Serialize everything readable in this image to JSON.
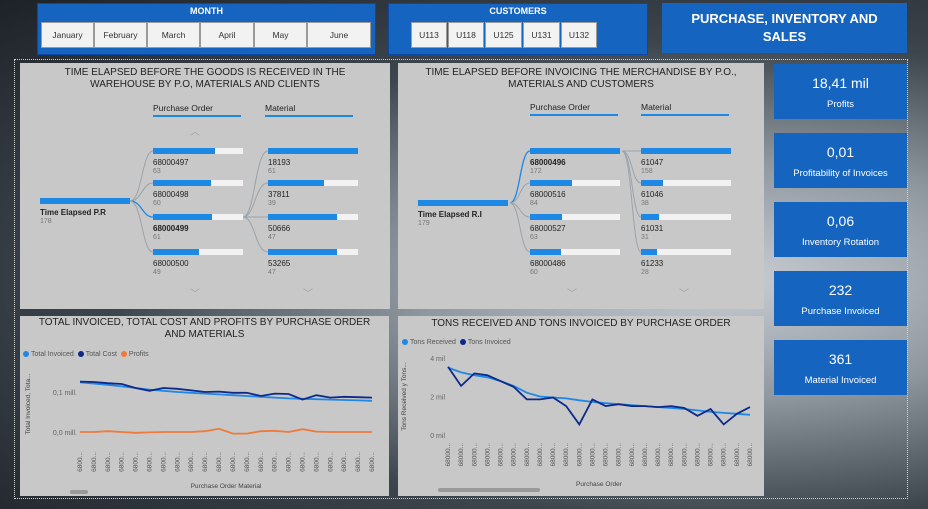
{
  "month_filter": {
    "title": "MONTH",
    "options": [
      "January",
      "February",
      "March",
      "April",
      "May",
      "June"
    ]
  },
  "customer_filter": {
    "title": "CUSTOMERS",
    "options": [
      "U113",
      "U118",
      "U125",
      "U131",
      "U132"
    ]
  },
  "report_title": "PURCHASE, INVENTORY AND SALES",
  "kpis": [
    {
      "value": "18,41 mil",
      "label": "Profits"
    },
    {
      "value": "0,01",
      "label": "Profitability of Invoices"
    },
    {
      "value": "0,06",
      "label": "Inventory Rotation"
    },
    {
      "value": "232",
      "label": "Purchase Invoiced"
    },
    {
      "value": "361",
      "label": "Material Invoiced"
    }
  ],
  "tree1": {
    "title_line1": "TIME ELAPSED BEFORE THE GOODS IS RECEIVED IN THE",
    "title_line2": "WAREHOUSE BY P.O, MATERIALS AND CLIENTS",
    "col1": "Purchase Order",
    "col2": "Material",
    "root": {
      "label": "Time Elapsed P.R",
      "value": "178",
      "fill": 1.0
    },
    "level1": [
      {
        "label": "68000497",
        "value": "63",
        "fill": 0.69,
        "selected": false
      },
      {
        "label": "68000498",
        "value": "60",
        "fill": 0.64,
        "selected": false
      },
      {
        "label": "68000499",
        "value": "61",
        "fill": 0.66,
        "selected": true
      },
      {
        "label": "68000500",
        "value": "49",
        "fill": 0.51,
        "selected": false
      }
    ],
    "level2": [
      {
        "label": "18193",
        "value": "61",
        "fill": 1.0
      },
      {
        "label": "37811",
        "value": "39",
        "fill": 0.62
      },
      {
        "label": "50666",
        "value": "47",
        "fill": 0.77
      },
      {
        "label": "53265",
        "value": "47",
        "fill": 0.77
      }
    ]
  },
  "tree2": {
    "title_line1": "TIME ELAPSED BEFORE INVOICING THE MERCHANDISE BY P.O.,",
    "title_line2": "MATERIALS AND CUSTOMERS",
    "col1": "Purchase Order",
    "col2": "Material",
    "root": {
      "label": "Time Elapsed R.I",
      "value": "179",
      "fill": 1.0
    },
    "level1": [
      {
        "label": "68000496",
        "value": "172",
        "fill": 1.0,
        "selected": true
      },
      {
        "label": "68000516",
        "value": "84",
        "fill": 0.47,
        "selected": false
      },
      {
        "label": "68000527",
        "value": "63",
        "fill": 0.36,
        "selected": false
      },
      {
        "label": "68000486",
        "value": "60",
        "fill": 0.34,
        "selected": false
      }
    ],
    "level2": [
      {
        "label": "61047",
        "value": "158",
        "fill": 1.0
      },
      {
        "label": "61046",
        "value": "38",
        "fill": 0.24
      },
      {
        "label": "61031",
        "value": "31",
        "fill": 0.2
      },
      {
        "label": "61233",
        "value": "28",
        "fill": 0.18
      }
    ]
  },
  "chart_data": [
    {
      "type": "line",
      "title": "TOTAL INVOICED, TOTAL COST AND PROFITS BY PURCHASE ORDER AND MATERIALS",
      "title_line1": "TOTAL INVOICED, TOTAL COST AND PROFITS BY PURCHASE ORDER",
      "title_line2": "AND MATERIALS",
      "xlabel": "Purchase Order Material",
      "ylabel": "Total Invoiced, Tota...",
      "yticks": [
        "0,1 mill.",
        "0,0 mill."
      ],
      "ylim": [
        -0.03,
        0.17
      ],
      "x_tick_label": "6800...",
      "series": [
        {
          "name": "Total Invoiced",
          "color": "#1e88e5",
          "values": [
            0.124,
            0.121,
            0.118,
            0.114,
            0.11,
            0.106,
            0.103,
            0.1,
            0.098,
            0.096,
            0.094,
            0.092,
            0.09,
            0.088,
            0.086,
            0.084,
            0.083,
            0.082,
            0.081,
            0.08,
            0.079,
            0.078
          ]
        },
        {
          "name": "Total Cost",
          "color": "#0d2a8a",
          "values": [
            0.126,
            0.125,
            0.122,
            0.12,
            0.11,
            0.103,
            0.11,
            0.108,
            0.104,
            0.1,
            0.101,
            0.098,
            0.098,
            0.09,
            0.096,
            0.095,
            0.081,
            0.092,
            0.086,
            0.088,
            0.087,
            0.086
          ]
        },
        {
          "name": "Profits",
          "color": "#f07a3a",
          "values": [
            0.0,
            0.0,
            0.002,
            0.0,
            -0.002,
            -0.001,
            0.0,
            0.0,
            0.0,
            0.002,
            0.008,
            -0.004,
            -0.004,
            0.002,
            0.003,
            0.0,
            0.007,
            0.001,
            0.0,
            0.0,
            0.0,
            0.0
          ]
        }
      ]
    },
    {
      "type": "line",
      "title": "TONS RECEIVED AND TONS INVOICED BY PURCHASE ORDER",
      "xlabel": "Purchase Order",
      "ylabel": "Tons Received y Tons...",
      "yticks": [
        "4 mil",
        "2 mil",
        "0 mil"
      ],
      "ylim": [
        0,
        4
      ],
      "x_tick_label": "68000...",
      "series": [
        {
          "name": "Tons Received",
          "color": "#1e88e5",
          "values": [
            3.5,
            3.25,
            3.1,
            3.0,
            2.8,
            2.55,
            2.2,
            2.0,
            1.95,
            1.9,
            1.8,
            1.72,
            1.65,
            1.6,
            1.55,
            1.5,
            1.45,
            1.4,
            1.35,
            1.28,
            1.2,
            1.15,
            1.1,
            1.05
          ]
        },
        {
          "name": "Tons Invoiced",
          "color": "#0d2a8a",
          "values": [
            3.55,
            2.55,
            3.2,
            3.1,
            2.8,
            2.5,
            1.85,
            1.85,
            1.95,
            1.5,
            0.55,
            1.85,
            1.5,
            1.6,
            1.5,
            1.5,
            1.45,
            1.5,
            1.4,
            1.0,
            1.35,
            0.55,
            1.1,
            1.45
          ]
        }
      ]
    }
  ]
}
